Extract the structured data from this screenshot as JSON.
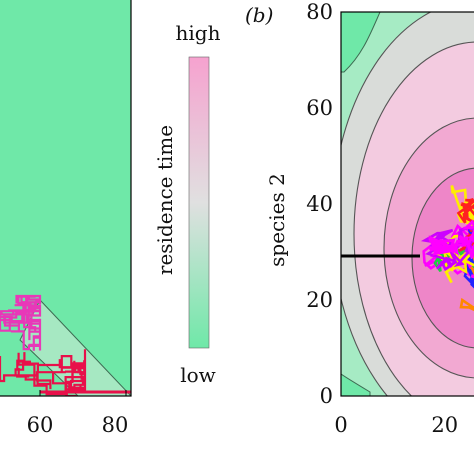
{
  "colors": {
    "low": "#6fe8a8",
    "mid": "#e0e0e0",
    "high": "#f6a2cf",
    "core": "#f070c8",
    "trajectory_red": "#e8104a",
    "trajectory_pink": "#e838b8",
    "line": "#000000"
  },
  "chart_data": [
    {
      "panel": "a",
      "type": "heatmap",
      "title": "",
      "xlabel": "",
      "ylabel": "",
      "x_ticks": [
        "60",
        "80"
      ],
      "xlim": [
        40,
        80
      ],
      "ylim": [
        0,
        80
      ],
      "grid": false,
      "regions": [
        {
          "level": "low",
          "description_visible": "green background"
        },
        {
          "level": "mid",
          "description_visible": "grey-green wedge near bottom right"
        }
      ],
      "trajectories": [
        {
          "color": "red/pink",
          "x_range": [
            40,
            80
          ],
          "y_range": [
            0,
            20
          ]
        }
      ]
    },
    {
      "panel": "colorbar",
      "type": "heatmap",
      "label": "residence time",
      "top_label": "high",
      "bottom_label": "low",
      "gradient": [
        "high",
        "mid",
        "low"
      ]
    },
    {
      "panel": "b",
      "type": "heatmap",
      "panel_label": "(b)",
      "ylabel": "species 2",
      "xlabel": "",
      "x_ticks": [
        "0",
        "20"
      ],
      "y_ticks": [
        "0",
        "20",
        "40",
        "60",
        "80"
      ],
      "xlim": [
        0,
        27
      ],
      "ylim": [
        0,
        80
      ],
      "grid": false,
      "contour_levels": [
        "low",
        "mid",
        "high",
        "core"
      ],
      "horizontal_line": {
        "x_start": 0,
        "x_end": 15,
        "y": 30
      },
      "trajectory_cloud": {
        "x_center": 27,
        "y_center": 30,
        "colors": [
          "magenta",
          "blue",
          "orange",
          "green",
          "yellow",
          "red"
        ]
      }
    }
  ]
}
